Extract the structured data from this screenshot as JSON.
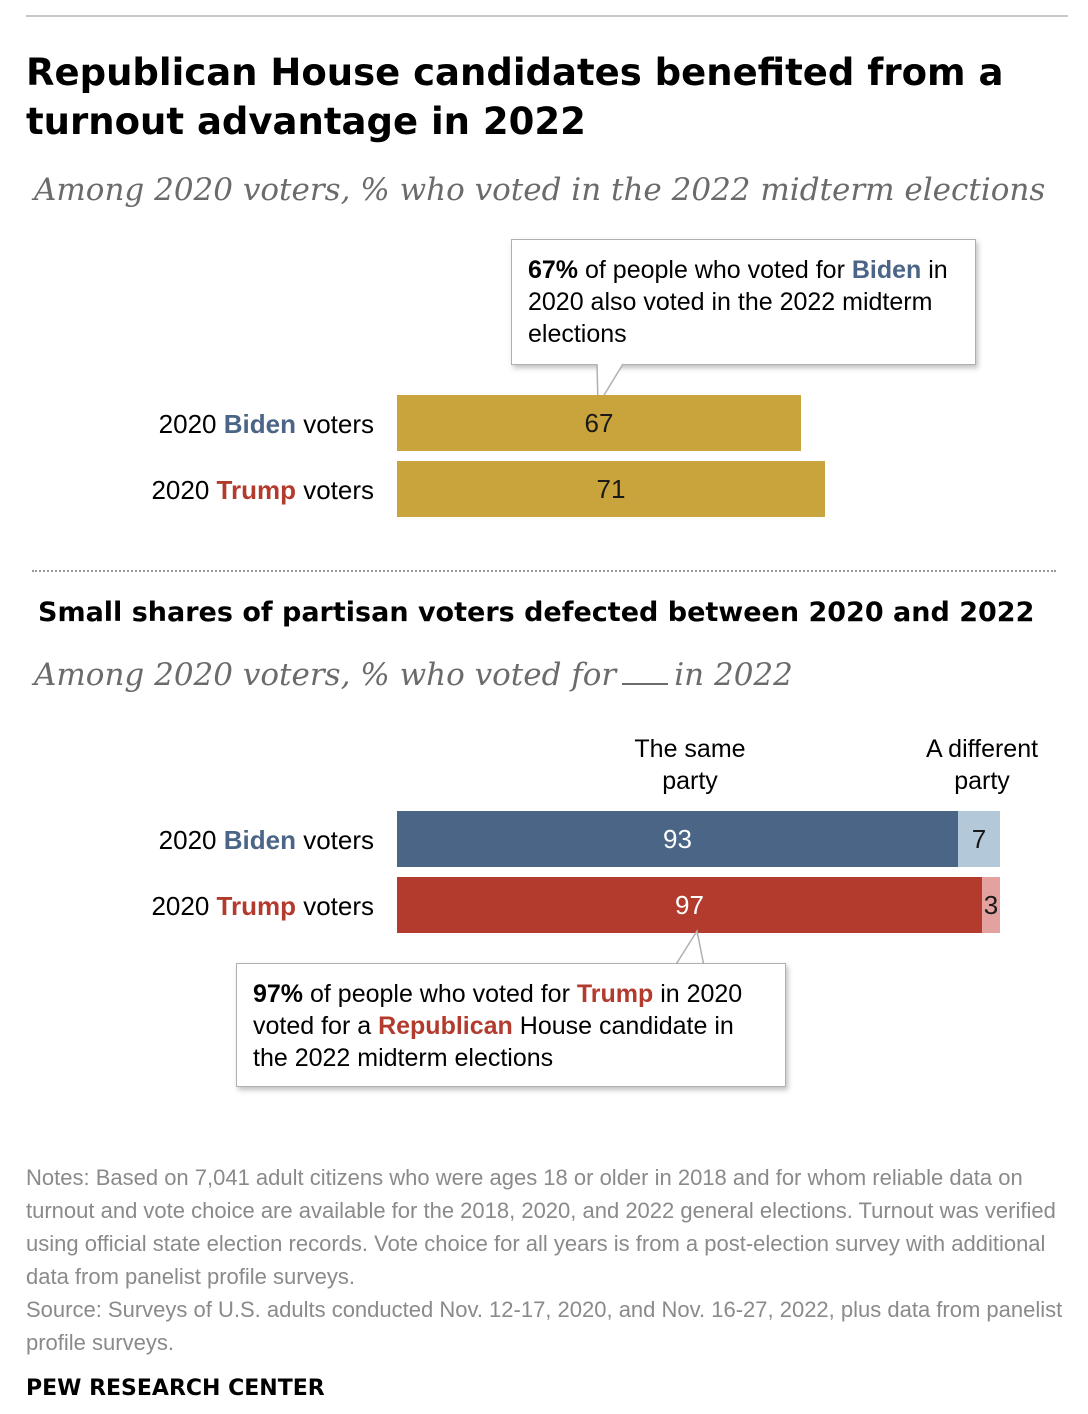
{
  "title": "Republican House candidates benefited from a turnout advantage in 2022",
  "subtitle1": "Among 2020 voters, % who voted in the 2022 midterm elections",
  "title2": "Small shares of partisan voters defected between 2020 and 2022",
  "subtitle2_pre": "Among 2020 voters, % who voted for",
  "subtitle2_post": "in 2022",
  "labels": {
    "prefix": "2020 ",
    "biden": "Biden",
    "trump": "Trump",
    "suffix": " voters"
  },
  "callout1": {
    "pct": "67%",
    "text1": " of people who voted for ",
    "name": "Biden",
    "text2": " in 2020 also voted in the 2022 midterm elections"
  },
  "callout2": {
    "pct": "97%",
    "text1": " of people who voted for ",
    "name": "Trump",
    "text2": " in 2020 voted for a ",
    "party": "Republican",
    "text3": " House candidate in the 2022 midterm elections"
  },
  "col_heads": {
    "same": "The same party",
    "different": "A different party"
  },
  "colors": {
    "turnout": "#c9a43c",
    "biden_same": "#4a6586",
    "biden_diff": "#b3c8d8",
    "trump_same": "#b23b2e",
    "trump_diff": "#e3a2a0"
  },
  "chart_data": [
    {
      "type": "bar",
      "orientation": "horizontal",
      "title": "Republican House candidates benefited from a turnout advantage in 2022",
      "subtitle": "Among 2020 voters, % who voted in the 2022 midterm elections",
      "categories": [
        "2020 Biden voters",
        "2020 Trump voters"
      ],
      "values": [
        67,
        71
      ],
      "xlim": [
        0,
        100
      ]
    },
    {
      "type": "bar",
      "orientation": "horizontal",
      "stacked": true,
      "title": "Small shares of partisan voters defected between 2020 and 2022",
      "subtitle": "Among 2020 voters, % who voted for __ in 2022",
      "categories": [
        "2020 Biden voters",
        "2020 Trump voters"
      ],
      "series": [
        {
          "name": "The same party",
          "values": [
            93,
            97
          ]
        },
        {
          "name": "A different party",
          "values": [
            7,
            3
          ]
        }
      ],
      "xlim": [
        0,
        100
      ]
    }
  ],
  "notes": "Notes: Based on 7,041 adult citizens who were ages 18 or older in 2018 and for whom reliable data on turnout and vote choice are available for the 2018, 2020, and 2022 general elections. Turnout was verified using official state election records. Vote choice for all years is from a post-election survey with additional data from panelist profile surveys.",
  "source": "Source: Surveys of U.S. adults conducted Nov. 12-17, 2020, and Nov. 16-27, 2022, plus data from panelist profile surveys.",
  "brand": "PEW RESEARCH CENTER"
}
